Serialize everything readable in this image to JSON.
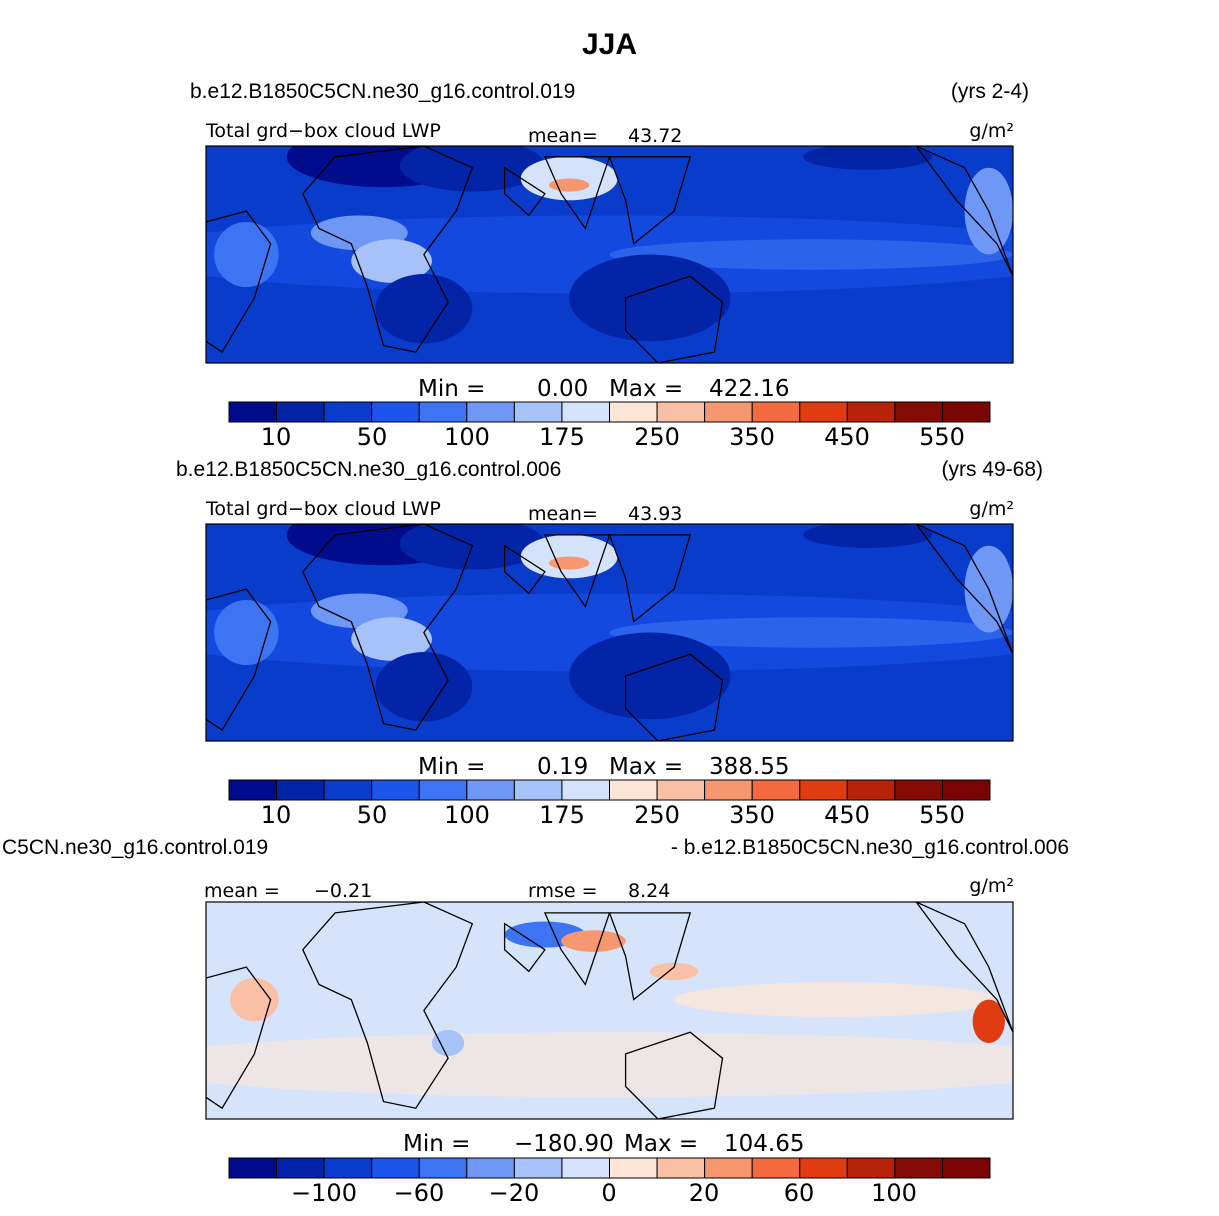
{
  "title": "JJA",
  "colors": {
    "panel_palette": [
      "#000c8c",
      "#0424a8",
      "#0a3ccc",
      "#1c54ec",
      "#3c74f4",
      "#6f98f6",
      "#a7c2f9",
      "#d4e3fb",
      "#fde6d8",
      "#f9c0a6",
      "#f69770",
      "#f26a3e",
      "#e03c12",
      "#b7230a",
      "#850b05"
    ],
    "diff_palette": [
      "#000c8c",
      "#0424a8",
      "#0a3ccc",
      "#1c54ec",
      "#3c74f4",
      "#6f98f6",
      "#a7c2f9",
      "#d4e3fb",
      "#fde6d8",
      "#f9c0a6",
      "#f69770",
      "#f26a3e",
      "#e03c12",
      "#b7230a",
      "#850b05"
    ],
    "coastline": "#000000"
  },
  "chart_data": [
    {
      "type": "heatmap",
      "case_label": "b.e12.B1850C5CN.ne30_g16.control.019",
      "years_label": "(yrs 2-4)",
      "field_label": "Total grd−box cloud LWP",
      "stat_label": "mean=",
      "stat_value": "43.72",
      "units": "g/m²",
      "min_label": "Min =",
      "min_value": "0.00",
      "max_label": "Max =",
      "max_value": "422.16",
      "colorbar_levels": [
        5,
        10,
        25,
        50,
        75,
        100,
        140,
        175,
        200,
        250,
        300,
        350,
        400,
        450,
        550
      ],
      "colorbar_tick_labels": [
        "10",
        "50",
        "100",
        "175",
        "250",
        "350",
        "450",
        "550"
      ]
    },
    {
      "type": "heatmap",
      "case_label": "b.e12.B1850C5CN.ne30_g16.control.006",
      "years_label": "(yrs 49-68)",
      "field_label": "Total grd−box cloud LWP",
      "stat_label": "mean=",
      "stat_value": "43.93",
      "units": "g/m²",
      "min_label": "Min =",
      "min_value": "0.19",
      "max_label": "Max =",
      "max_value": "388.55",
      "colorbar_levels": [
        5,
        10,
        25,
        50,
        75,
        100,
        140,
        175,
        200,
        250,
        300,
        350,
        400,
        450,
        550
      ],
      "colorbar_tick_labels": [
        "10",
        "50",
        "100",
        "175",
        "250",
        "350",
        "450",
        "550"
      ]
    },
    {
      "type": "heatmap",
      "case_label_left": "C5CN.ne30_g16.control.019",
      "case_label_right": "- b.e12.B1850C5CN.ne30_g16.control.006",
      "mean_label": "mean =",
      "mean_value": "−0.21",
      "rmse_label": "rmse =",
      "rmse_value": "8.24",
      "units": "g/m²",
      "min_label": "Min =",
      "min_value": "−180.90",
      "max_label": "Max =",
      "max_value": "104.65",
      "colorbar_tick_labels": [
        "−100",
        "−60",
        "−20",
        "0",
        "20",
        "60",
        "100"
      ]
    }
  ]
}
